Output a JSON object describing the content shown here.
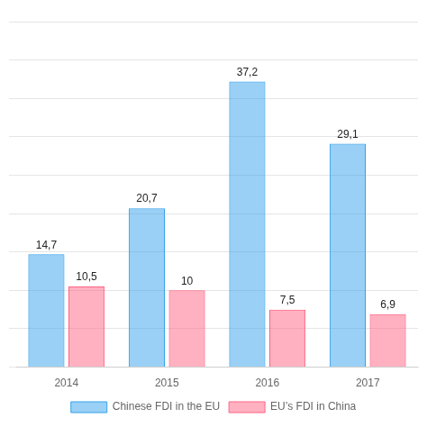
{
  "chart_data": {
    "type": "bar",
    "categories": [
      "2014",
      "2015",
      "2016",
      "2017"
    ],
    "series": [
      {
        "name": "Chinese FDI in the EU",
        "values": [
          14.7,
          20.7,
          37.2,
          29.1
        ],
        "value_labels": [
          "14,7",
          "20,7",
          "37,2",
          "29,1"
        ]
      },
      {
        "name": "EU’s FDI in China",
        "values": [
          10.5,
          10.0,
          7.5,
          6.9
        ],
        "value_labels": [
          "10,5",
          "10",
          "7,5",
          "6,9"
        ]
      }
    ],
    "ylim": [
      0,
      45
    ],
    "yticks": [
      0,
      5,
      10,
      15,
      20,
      25,
      30,
      35,
      40,
      45
    ],
    "grid": true,
    "legend": "bottom",
    "data_labels": true,
    "tick_labels": "x"
  }
}
